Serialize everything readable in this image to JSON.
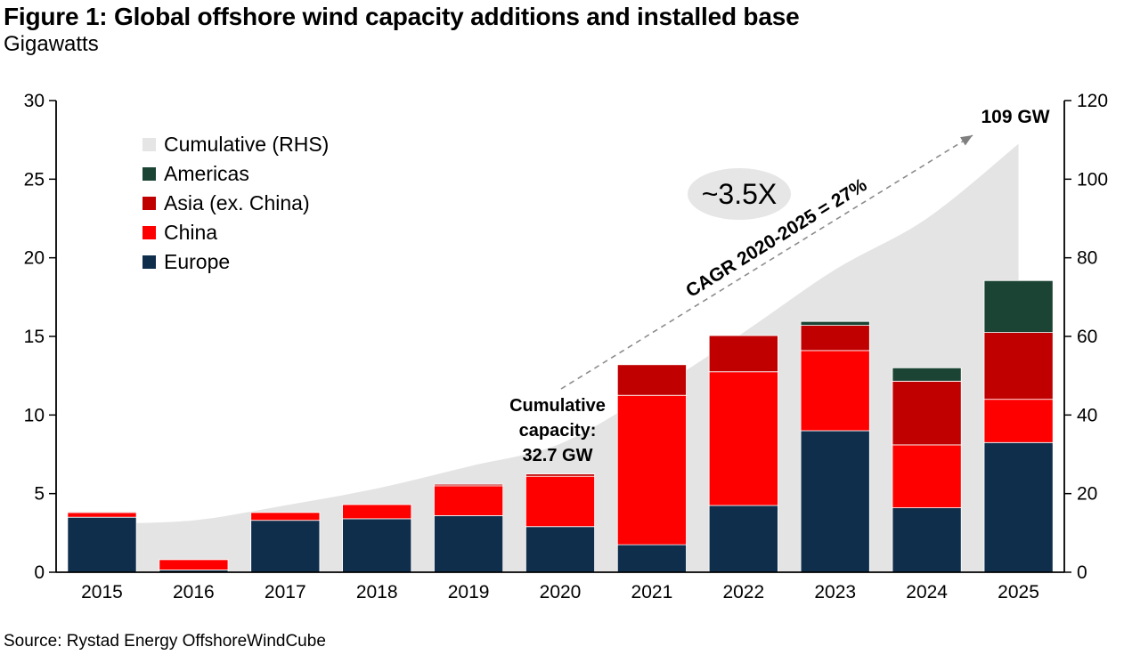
{
  "header": {
    "title": "Figure 1: Global offshore wind capacity additions and installed base",
    "subtitle": "Gigawatts"
  },
  "legend": {
    "items": [
      {
        "label": "Cumulative (RHS)",
        "color": "#E5E5E5"
      },
      {
        "label": "Americas",
        "color": "#1B4434"
      },
      {
        "label": "Asia (ex. China)",
        "color": "#C00000"
      },
      {
        "label": "China",
        "color": "#FF0000"
      },
      {
        "label": "Europe",
        "color": "#0F2E4C"
      }
    ]
  },
  "annotations": {
    "multiplier": "~3.5X",
    "cagr": "CAGR 2020-2025 = 27%",
    "final_value": "109 GW",
    "cumulative_note_label": "Cumulative capacity:",
    "cumulative_note_value": "32.7 GW"
  },
  "source": "Source: Rystad Energy OffshoreWindCube",
  "chart_data": {
    "type": "bar",
    "subtype": "stacked-bars-with-cumulative-area",
    "title": "Global offshore wind capacity additions and installed base",
    "unit": "Gigawatts",
    "categories": [
      "2015",
      "2016",
      "2017",
      "2018",
      "2019",
      "2020",
      "2021",
      "2022",
      "2023",
      "2024",
      "2025"
    ],
    "series": [
      {
        "name": "Europe",
        "color": "#0F2E4C",
        "values": [
          3.5,
          0.15,
          3.3,
          3.4,
          3.6,
          2.9,
          1.75,
          4.25,
          9.0,
          4.1,
          8.25
        ]
      },
      {
        "name": "China",
        "color": "#FF0000",
        "values": [
          0.3,
          0.65,
          0.5,
          0.9,
          1.9,
          3.2,
          9.5,
          8.5,
          5.1,
          4.0,
          2.75
        ]
      },
      {
        "name": "Asia (ex. China)",
        "color": "#C00000",
        "values": [
          0.05,
          0.0,
          0.0,
          0.0,
          0.1,
          0.15,
          1.95,
          2.3,
          1.6,
          4.05,
          4.25
        ]
      },
      {
        "name": "Americas",
        "color": "#1B4434",
        "values": [
          0.0,
          0.0,
          0.0,
          0.0,
          0.0,
          0.0,
          0.0,
          0.0,
          0.25,
          0.85,
          3.3
        ]
      }
    ],
    "area_series": {
      "name": "Cumulative (RHS)",
      "axis": "right",
      "color": "#E5E4E4",
      "values": [
        12.4,
        13.2,
        17.0,
        21.3,
        26.9,
        32.7,
        45.9,
        61.0,
        77.0,
        90.0,
        109.0
      ]
    },
    "left_axis": {
      "min": 0,
      "max": 30,
      "ticks": [
        0,
        5,
        10,
        15,
        20,
        25,
        30
      ]
    },
    "right_axis": {
      "min": 0,
      "max": 120,
      "ticks": [
        0,
        20,
        40,
        60,
        80,
        100,
        120
      ]
    },
    "grid": false,
    "legend_position": "inside-upper-left"
  }
}
